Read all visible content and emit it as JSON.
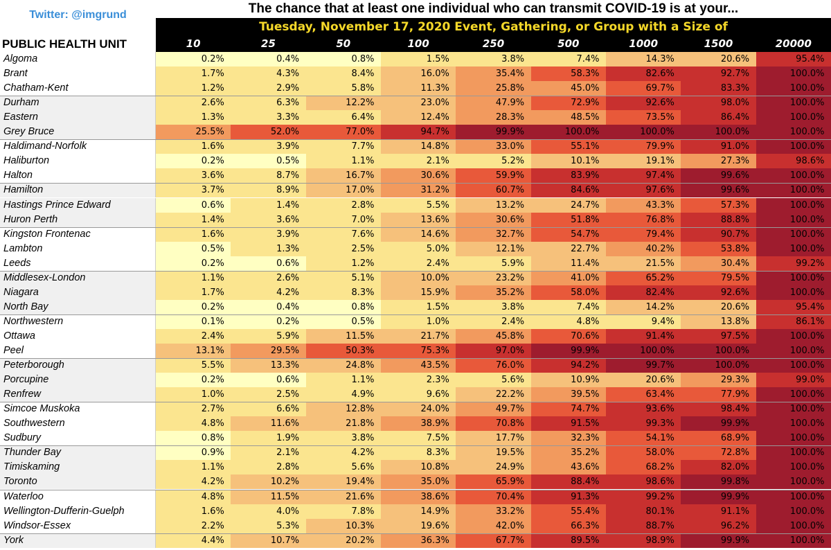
{
  "header": {
    "twitter": "Twitter: @imgrund",
    "title": "The chance that at least one individual who can transmit COVID-19 is at your...",
    "subtitle": "Tuesday, November 17, 2020 Event, Gathering, or Group with a Size of",
    "row_header": "PUBLIC HEALTH UNIT"
  },
  "colors": {
    "title_bar_bg": "#000000",
    "subtitle_text": "#f5d829",
    "twitter_text": "#3a8ed8",
    "scale": [
      "#ffffc2",
      "#fbe58f",
      "#f6c17b",
      "#f29a5e",
      "#e8593a",
      "#c8302f",
      "#9e1c2e"
    ]
  },
  "chart_data": {
    "type": "heatmap",
    "title": "The chance that at least one individual who can transmit COVID-19 is at your...",
    "subtitle": "Tuesday, November 17, 2020 Event, Gathering, or Group with a Size of",
    "row_header": "PUBLIC HEALTH UNIT",
    "columns": [
      "10",
      "25",
      "50",
      "100",
      "250",
      "500",
      "1000",
      "1500",
      "20000"
    ],
    "rows": [
      {
        "name": "Algoma",
        "values": [
          "0.2%",
          "0.4%",
          "0.8%",
          "1.5%",
          "3.8%",
          "7.4%",
          "14.3%",
          "20.6%",
          "95.4%"
        ]
      },
      {
        "name": "Brant",
        "values": [
          "1.7%",
          "4.3%",
          "8.4%",
          "16.0%",
          "35.4%",
          "58.3%",
          "82.6%",
          "92.7%",
          "100.0%"
        ]
      },
      {
        "name": "Chatham-Kent",
        "values": [
          "1.2%",
          "2.9%",
          "5.8%",
          "11.3%",
          "25.8%",
          "45.0%",
          "69.7%",
          "83.3%",
          "100.0%"
        ]
      },
      {
        "name": "Durham",
        "values": [
          "2.6%",
          "6.3%",
          "12.2%",
          "23.0%",
          "47.9%",
          "72.9%",
          "92.6%",
          "98.0%",
          "100.0%"
        ]
      },
      {
        "name": "Eastern",
        "values": [
          "1.3%",
          "3.3%",
          "6.4%",
          "12.4%",
          "28.3%",
          "48.5%",
          "73.5%",
          "86.4%",
          "100.0%"
        ]
      },
      {
        "name": "Grey Bruce",
        "values": [
          "25.5%",
          "52.0%",
          "77.0%",
          "94.7%",
          "99.9%",
          "100.0%",
          "100.0%",
          "100.0%",
          "100.0%"
        ]
      },
      {
        "name": "Haldimand-Norfolk",
        "values": [
          "1.6%",
          "3.9%",
          "7.7%",
          "14.8%",
          "33.0%",
          "55.1%",
          "79.9%",
          "91.0%",
          "100.0%"
        ]
      },
      {
        "name": "Haliburton",
        "values": [
          "0.2%",
          "0.5%",
          "1.1%",
          "2.1%",
          "5.2%",
          "10.1%",
          "19.1%",
          "27.3%",
          "98.6%"
        ]
      },
      {
        "name": "Halton",
        "values": [
          "3.6%",
          "8.7%",
          "16.7%",
          "30.6%",
          "59.9%",
          "83.9%",
          "97.4%",
          "99.6%",
          "100.0%"
        ]
      },
      {
        "name": "Hamilton",
        "values": [
          "3.7%",
          "8.9%",
          "17.0%",
          "31.2%",
          "60.7%",
          "84.6%",
          "97.6%",
          "99.6%",
          "100.0%"
        ]
      },
      {
        "name": "Hastings Prince Edward",
        "values": [
          "0.6%",
          "1.4%",
          "2.8%",
          "5.5%",
          "13.2%",
          "24.7%",
          "43.3%",
          "57.3%",
          "100.0%"
        ]
      },
      {
        "name": "Huron Perth",
        "values": [
          "1.4%",
          "3.6%",
          "7.0%",
          "13.6%",
          "30.6%",
          "51.8%",
          "76.8%",
          "88.8%",
          "100.0%"
        ]
      },
      {
        "name": "Kingston Frontenac",
        "values": [
          "1.6%",
          "3.9%",
          "7.6%",
          "14.6%",
          "32.7%",
          "54.7%",
          "79.4%",
          "90.7%",
          "100.0%"
        ]
      },
      {
        "name": "Lambton",
        "values": [
          "0.5%",
          "1.3%",
          "2.5%",
          "5.0%",
          "12.1%",
          "22.7%",
          "40.2%",
          "53.8%",
          "100.0%"
        ]
      },
      {
        "name": "Leeds",
        "values": [
          "0.2%",
          "0.6%",
          "1.2%",
          "2.4%",
          "5.9%",
          "11.4%",
          "21.5%",
          "30.4%",
          "99.2%"
        ]
      },
      {
        "name": "Middlesex-London",
        "values": [
          "1.1%",
          "2.6%",
          "5.1%",
          "10.0%",
          "23.2%",
          "41.0%",
          "65.2%",
          "79.5%",
          "100.0%"
        ]
      },
      {
        "name": "Niagara",
        "values": [
          "1.7%",
          "4.2%",
          "8.3%",
          "15.9%",
          "35.2%",
          "58.0%",
          "82.4%",
          "92.6%",
          "100.0%"
        ]
      },
      {
        "name": "North Bay",
        "values": [
          "0.2%",
          "0.4%",
          "0.8%",
          "1.5%",
          "3.8%",
          "7.4%",
          "14.2%",
          "20.6%",
          "95.4%"
        ]
      },
      {
        "name": "Northwestern",
        "values": [
          "0.1%",
          "0.2%",
          "0.5%",
          "1.0%",
          "2.4%",
          "4.8%",
          "9.4%",
          "13.8%",
          "86.1%"
        ]
      },
      {
        "name": "Ottawa",
        "values": [
          "2.4%",
          "5.9%",
          "11.5%",
          "21.7%",
          "45.8%",
          "70.6%",
          "91.4%",
          "97.5%",
          "100.0%"
        ]
      },
      {
        "name": "Peel",
        "values": [
          "13.1%",
          "29.5%",
          "50.3%",
          "75.3%",
          "97.0%",
          "99.9%",
          "100.0%",
          "100.0%",
          "100.0%"
        ]
      },
      {
        "name": "Peterborough",
        "values": [
          "5.5%",
          "13.3%",
          "24.8%",
          "43.5%",
          "76.0%",
          "94.2%",
          "99.7%",
          "100.0%",
          "100.0%"
        ]
      },
      {
        "name": "Porcupine",
        "values": [
          "0.2%",
          "0.6%",
          "1.1%",
          "2.3%",
          "5.6%",
          "10.9%",
          "20.6%",
          "29.3%",
          "99.0%"
        ]
      },
      {
        "name": "Renfrew",
        "values": [
          "1.0%",
          "2.5%",
          "4.9%",
          "9.6%",
          "22.2%",
          "39.5%",
          "63.4%",
          "77.9%",
          "100.0%"
        ]
      },
      {
        "name": "Simcoe Muskoka",
        "values": [
          "2.7%",
          "6.6%",
          "12.8%",
          "24.0%",
          "49.7%",
          "74.7%",
          "93.6%",
          "98.4%",
          "100.0%"
        ]
      },
      {
        "name": "Southwestern",
        "values": [
          "4.8%",
          "11.6%",
          "21.8%",
          "38.9%",
          "70.8%",
          "91.5%",
          "99.3%",
          "99.9%",
          "100.0%"
        ]
      },
      {
        "name": "Sudbury",
        "values": [
          "0.8%",
          "1.9%",
          "3.8%",
          "7.5%",
          "17.7%",
          "32.3%",
          "54.1%",
          "68.9%",
          "100.0%"
        ]
      },
      {
        "name": "Thunder Bay",
        "values": [
          "0.9%",
          "2.1%",
          "4.2%",
          "8.3%",
          "19.5%",
          "35.2%",
          "58.0%",
          "72.8%",
          "100.0%"
        ]
      },
      {
        "name": "Timiskaming",
        "values": [
          "1.1%",
          "2.8%",
          "5.6%",
          "10.8%",
          "24.9%",
          "43.6%",
          "68.2%",
          "82.0%",
          "100.0%"
        ]
      },
      {
        "name": "Toronto",
        "values": [
          "4.2%",
          "10.2%",
          "19.4%",
          "35.0%",
          "65.9%",
          "88.4%",
          "98.6%",
          "99.8%",
          "100.0%"
        ]
      },
      {
        "name": "Waterloo",
        "values": [
          "4.8%",
          "11.5%",
          "21.6%",
          "38.6%",
          "70.4%",
          "91.3%",
          "99.2%",
          "99.9%",
          "100.0%"
        ]
      },
      {
        "name": "Wellington-Dufferin-Guelph",
        "values": [
          "1.6%",
          "4.0%",
          "7.8%",
          "14.9%",
          "33.2%",
          "55.4%",
          "80.1%",
          "91.1%",
          "100.0%"
        ]
      },
      {
        "name": "Windsor-Essex",
        "values": [
          "2.2%",
          "5.3%",
          "10.3%",
          "19.6%",
          "42.0%",
          "66.3%",
          "88.7%",
          "96.2%",
          "100.0%"
        ]
      },
      {
        "name": "York",
        "values": [
          "4.4%",
          "10.7%",
          "20.2%",
          "36.3%",
          "67.7%",
          "89.5%",
          "98.9%",
          "99.9%",
          "100.0%"
        ]
      }
    ]
  }
}
